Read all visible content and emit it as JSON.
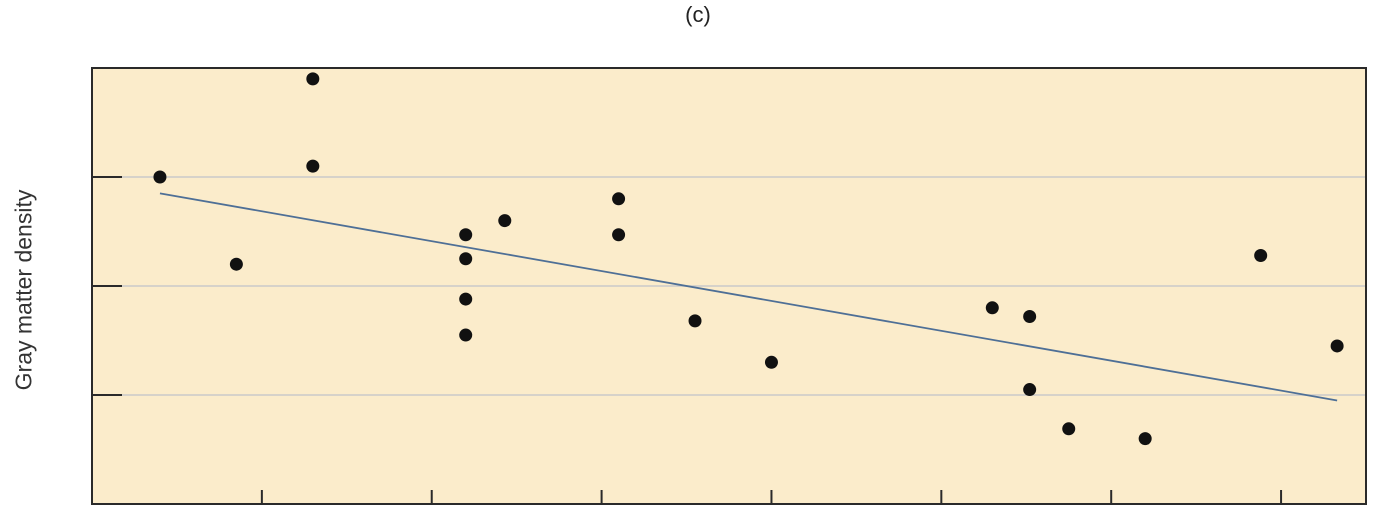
{
  "panel_label": "(c)",
  "colors": {
    "plot_background": "#fbeccb",
    "frame": "#2a2a2a",
    "gridline": "#c9c9c9",
    "trendline": "#4e6f96",
    "point": "#111111"
  },
  "chart_data": {
    "type": "scatter",
    "title": "(c)",
    "xlabel": "",
    "ylabel": "Gray matter density",
    "xlim": [
      0,
      7.5
    ],
    "ylim": [
      0,
      4
    ],
    "xticks": [
      0,
      1,
      2,
      3,
      4,
      5,
      6,
      7
    ],
    "yticks": [
      0,
      1,
      2,
      3,
      4
    ],
    "grid": true,
    "legend": "none",
    "points": [
      {
        "x": 0.4,
        "y": 3.0
      },
      {
        "x": 0.85,
        "y": 2.2
      },
      {
        "x": 1.3,
        "y": 3.9
      },
      {
        "x": 1.3,
        "y": 3.1
      },
      {
        "x": 2.2,
        "y": 2.47
      },
      {
        "x": 2.2,
        "y": 2.25
      },
      {
        "x": 2.2,
        "y": 1.88
      },
      {
        "x": 2.2,
        "y": 1.55
      },
      {
        "x": 2.43,
        "y": 2.6
      },
      {
        "x": 3.1,
        "y": 2.8
      },
      {
        "x": 3.1,
        "y": 2.47
      },
      {
        "x": 3.55,
        "y": 1.68
      },
      {
        "x": 4.0,
        "y": 1.3
      },
      {
        "x": 5.3,
        "y": 1.8
      },
      {
        "x": 5.52,
        "y": 1.72
      },
      {
        "x": 5.52,
        "y": 1.05
      },
      {
        "x": 5.75,
        "y": 0.69
      },
      {
        "x": 6.2,
        "y": 0.6
      },
      {
        "x": 6.88,
        "y": 2.28
      },
      {
        "x": 7.33,
        "y": 1.45
      }
    ],
    "trendline": {
      "x": [
        0.4,
        7.33
      ],
      "y": [
        2.85,
        0.95
      ]
    }
  }
}
